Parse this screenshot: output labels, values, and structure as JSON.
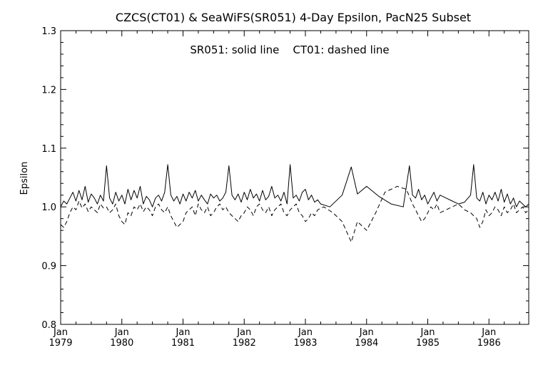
{
  "chart_data": {
    "type": "line",
    "title": "CZCS(CT01) & SeaWiFS(SR051) 4-Day Epsilon, PacN25 Subset",
    "annotation": "SR051: solid line    CT01: dashed line",
    "ylabel": "Epsilon",
    "xlabel": "",
    "ylim": [
      0.8,
      1.3
    ],
    "yticks": [
      "0.8",
      "0.9",
      "1.0",
      "1.1",
      "1.2",
      "1.3"
    ],
    "xlim": [
      1979.0,
      1986.65
    ],
    "xticks": [
      {
        "month": "Jan",
        "year": "1979",
        "x": 1979.0
      },
      {
        "month": "Jan",
        "year": "1980",
        "x": 1980.0
      },
      {
        "month": "Jan",
        "year": "1981",
        "x": 1981.0
      },
      {
        "month": "Jan",
        "year": "1982",
        "x": 1982.0
      },
      {
        "month": "Jan",
        "year": "1983",
        "x": 1983.0
      },
      {
        "month": "Jan",
        "year": "1984",
        "x": 1984.0
      },
      {
        "month": "Jan",
        "year": "1985",
        "x": 1985.0
      },
      {
        "month": "Jan",
        "year": "1986",
        "x": 1986.0
      }
    ],
    "grid": false,
    "series": [
      {
        "name": "SR051",
        "style": "solid",
        "x": [
          1979.0,
          1979.05,
          1979.1,
          1979.15,
          1979.2,
          1979.25,
          1979.3,
          1979.35,
          1979.4,
          1979.45,
          1979.5,
          1979.55,
          1979.6,
          1979.65,
          1979.7,
          1979.75,
          1979.8,
          1979.85,
          1979.9,
          1979.95,
          1980.0,
          1980.05,
          1980.1,
          1980.15,
          1980.2,
          1980.25,
          1980.3,
          1980.35,
          1980.4,
          1980.45,
          1980.5,
          1980.55,
          1980.6,
          1980.65,
          1980.7,
          1980.75,
          1980.8,
          1980.85,
          1980.9,
          1980.95,
          1981.0,
          1981.05,
          1981.1,
          1981.15,
          1981.2,
          1981.25,
          1981.3,
          1981.35,
          1981.4,
          1981.45,
          1981.5,
          1981.55,
          1981.6,
          1981.65,
          1981.7,
          1981.75,
          1981.8,
          1981.85,
          1981.9,
          1981.95,
          1982.0,
          1982.05,
          1982.1,
          1982.15,
          1982.2,
          1982.25,
          1982.3,
          1982.35,
          1982.4,
          1982.45,
          1982.5,
          1982.55,
          1982.6,
          1982.65,
          1982.7,
          1982.75,
          1982.8,
          1982.85,
          1982.9,
          1982.95,
          1983.0,
          1983.05,
          1983.1,
          1983.15,
          1983.2,
          1983.25,
          1983.4,
          1983.6,
          1983.75,
          1983.85,
          1984.0,
          1984.2,
          1984.4,
          1984.6,
          1984.7,
          1984.75,
          1984.8,
          1984.85,
          1984.9,
          1984.95,
          1985.0,
          1985.05,
          1985.1,
          1985.15,
          1985.2,
          1985.3,
          1985.4,
          1985.5,
          1985.6,
          1985.7,
          1985.75,
          1985.8,
          1985.85,
          1985.9,
          1985.95,
          1986.0,
          1986.05,
          1986.1,
          1986.15,
          1986.2,
          1986.25,
          1986.3,
          1986.35,
          1986.4,
          1986.45,
          1986.5,
          1986.55,
          1986.6,
          1986.65
        ],
        "y": [
          1.0,
          1.01,
          1.005,
          1.015,
          1.025,
          1.01,
          1.028,
          1.012,
          1.035,
          1.008,
          1.022,
          1.015,
          1.005,
          1.02,
          1.01,
          1.07,
          1.015,
          1.005,
          1.025,
          1.01,
          1.02,
          1.005,
          1.03,
          1.012,
          1.028,
          1.015,
          1.035,
          1.005,
          1.018,
          1.012,
          1.0,
          1.015,
          1.02,
          1.01,
          1.025,
          1.072,
          1.02,
          1.01,
          1.018,
          1.005,
          1.022,
          1.01,
          1.025,
          1.015,
          1.028,
          1.01,
          1.02,
          1.012,
          1.005,
          1.022,
          1.015,
          1.02,
          1.01,
          1.015,
          1.025,
          1.07,
          1.02,
          1.012,
          1.022,
          1.008,
          1.025,
          1.012,
          1.03,
          1.015,
          1.022,
          1.01,
          1.028,
          1.012,
          1.018,
          1.035,
          1.015,
          1.02,
          1.01,
          1.025,
          1.005,
          1.072,
          1.015,
          1.02,
          1.01,
          1.025,
          1.03,
          1.012,
          1.02,
          1.008,
          1.012,
          1.005,
          1.0,
          1.02,
          1.068,
          1.022,
          1.035,
          1.018,
          1.005,
          1.0,
          1.07,
          1.02,
          1.015,
          1.03,
          1.012,
          1.02,
          1.005,
          1.015,
          1.025,
          1.01,
          1.02,
          1.015,
          1.01,
          1.005,
          1.008,
          1.02,
          1.072,
          1.015,
          1.01,
          1.025,
          1.005,
          1.02,
          1.012,
          1.025,
          1.01,
          1.03,
          1.008,
          1.022,
          1.005,
          1.015,
          1.0,
          1.01,
          1.005,
          1.0,
          1.005
        ]
      },
      {
        "name": "CT01",
        "style": "dashed",
        "x": [
          1979.0,
          1979.05,
          1979.1,
          1979.15,
          1979.2,
          1979.25,
          1979.3,
          1979.35,
          1979.4,
          1979.45,
          1979.5,
          1979.55,
          1979.6,
          1979.65,
          1979.7,
          1979.75,
          1979.8,
          1979.85,
          1979.9,
          1979.95,
          1980.0,
          1980.05,
          1980.1,
          1980.15,
          1980.2,
          1980.25,
          1980.3,
          1980.35,
          1980.4,
          1980.45,
          1980.5,
          1980.55,
          1980.6,
          1980.65,
          1980.7,
          1980.75,
          1980.8,
          1980.85,
          1980.9,
          1980.95,
          1981.0,
          1981.05,
          1981.1,
          1981.15,
          1981.2,
          1981.25,
          1981.3,
          1981.35,
          1981.4,
          1981.45,
          1981.5,
          1981.55,
          1981.6,
          1981.65,
          1981.7,
          1981.75,
          1981.8,
          1981.85,
          1981.9,
          1981.95,
          1982.0,
          1982.05,
          1982.1,
          1982.15,
          1982.2,
          1982.25,
          1982.3,
          1982.35,
          1982.4,
          1982.45,
          1982.5,
          1982.55,
          1982.6,
          1982.65,
          1982.7,
          1982.75,
          1982.8,
          1982.85,
          1982.9,
          1982.95,
          1983.0,
          1983.05,
          1983.1,
          1983.15,
          1983.2,
          1983.3,
          1983.45,
          1983.6,
          1983.75,
          1983.85,
          1984.0,
          1984.15,
          1984.3,
          1984.5,
          1984.65,
          1984.75,
          1984.8,
          1984.85,
          1984.9,
          1984.95,
          1985.0,
          1985.05,
          1985.1,
          1985.15,
          1985.2,
          1985.3,
          1985.4,
          1985.5,
          1985.6,
          1985.7,
          1985.75,
          1985.8,
          1985.85,
          1985.9,
          1985.95,
          1986.0,
          1986.05,
          1986.1,
          1986.15,
          1986.2,
          1986.25,
          1986.3,
          1986.35,
          1986.4,
          1986.45,
          1986.5,
          1986.55,
          1986.6,
          1986.65
        ],
        "y": [
          0.97,
          0.965,
          0.975,
          0.99,
          1.0,
          0.995,
          1.01,
          0.998,
          1.005,
          0.992,
          1.0,
          0.995,
          0.99,
          1.005,
          0.998,
          1.0,
          0.99,
          0.995,
          1.005,
          0.985,
          0.975,
          0.97,
          0.99,
          0.985,
          1.0,
          0.995,
          1.005,
          0.992,
          1.0,
          0.995,
          0.985,
          1.0,
          1.005,
          0.995,
          0.99,
          1.0,
          0.985,
          0.975,
          0.965,
          0.97,
          0.975,
          0.99,
          0.995,
          1.0,
          0.985,
          1.005,
          0.995,
          0.99,
          1.0,
          0.985,
          0.99,
          1.0,
          1.005,
          0.995,
          1.0,
          0.99,
          0.985,
          0.98,
          0.975,
          0.985,
          0.99,
          1.0,
          0.995,
          0.985,
          1.0,
          1.005,
          0.995,
          0.99,
          1.0,
          0.985,
          0.995,
          1.0,
          1.005,
          0.99,
          0.985,
          0.995,
          1.0,
          1.005,
          0.99,
          0.985,
          0.975,
          0.98,
          0.99,
          0.985,
          0.995,
          1.0,
          0.99,
          0.975,
          0.94,
          0.975,
          0.96,
          0.99,
          1.025,
          1.035,
          1.03,
          1.005,
          0.995,
          0.985,
          0.975,
          0.98,
          0.99,
          1.0,
          0.995,
          1.005,
          0.99,
          0.995,
          1.0,
          1.005,
          0.995,
          0.99,
          0.985,
          0.98,
          0.965,
          0.975,
          0.995,
          0.985,
          0.99,
          1.0,
          0.995,
          0.985,
          1.0,
          0.99,
          0.995,
          1.005,
          0.99,
          0.995,
          1.0,
          0.99,
          0.995
        ]
      }
    ]
  }
}
